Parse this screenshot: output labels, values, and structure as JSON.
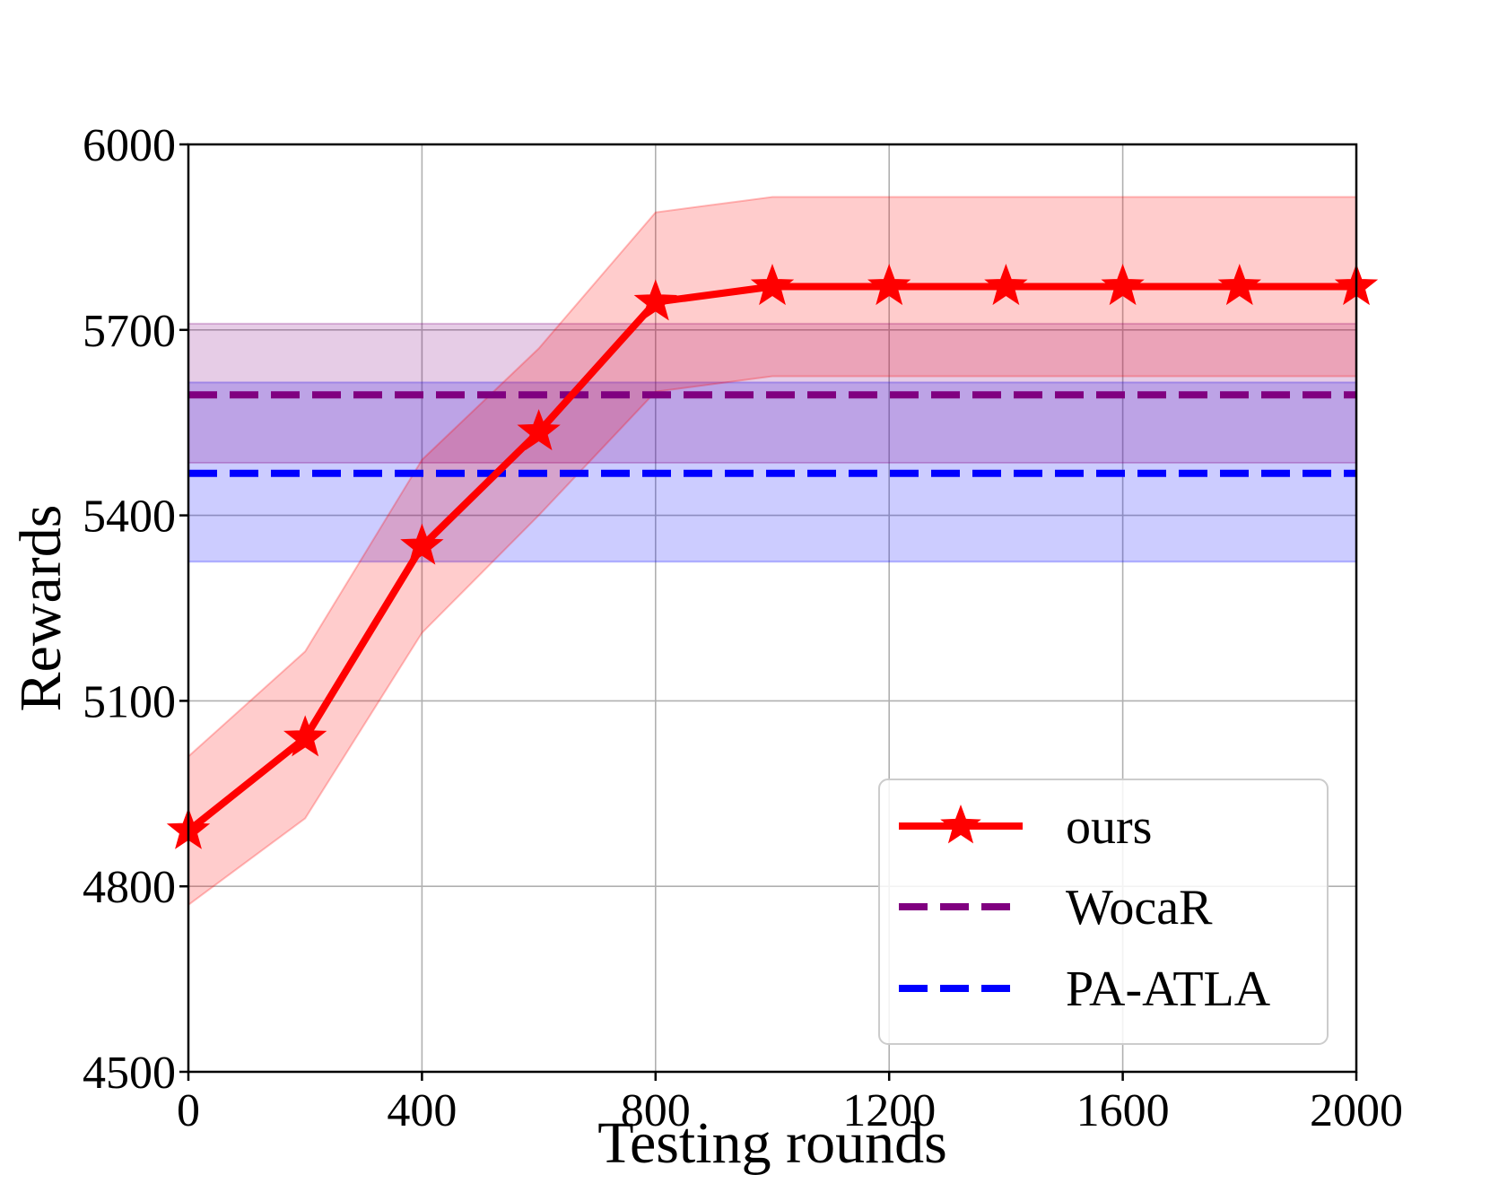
{
  "chart_data": {
    "type": "line",
    "title": "",
    "xlabel": "Testing rounds",
    "ylabel": "Rewards",
    "xlim": [
      0,
      2000
    ],
    "ylim": [
      4500,
      6000
    ],
    "xticks": [
      0,
      400,
      800,
      1200,
      1600,
      2000
    ],
    "yticks": [
      4500,
      4800,
      5100,
      5400,
      5700,
      6000
    ],
    "xtick_labels": [
      "0",
      "400",
      "800",
      "1200",
      "1600",
      "2000"
    ],
    "ytick_labels": [
      "4500",
      "4800",
      "5100",
      "5400",
      "5700",
      "6000"
    ],
    "grid": true,
    "legend_position": "lower-right",
    "series": [
      {
        "name": "ours",
        "style": "solid",
        "marker": "star",
        "color": "#ff0000",
        "x": [
          0,
          200,
          400,
          600,
          800,
          1000,
          1200,
          1400,
          1600,
          1800,
          2000
        ],
        "values": [
          4890,
          5040,
          5350,
          5535,
          5745,
          5770,
          5770,
          5770,
          5770,
          5770,
          5770
        ],
        "band_lower": [
          4770,
          4910,
          5210,
          5400,
          5600,
          5625,
          5625,
          5625,
          5625,
          5625,
          5625
        ],
        "band_upper": [
          5010,
          5180,
          5490,
          5670,
          5890,
          5915,
          5915,
          5915,
          5915,
          5915,
          5915
        ]
      },
      {
        "name": "WocaR",
        "style": "dashed",
        "color": "#800080",
        "x": [
          0,
          2000
        ],
        "values": [
          5595,
          5595
        ],
        "band_lower": [
          5485,
          5485
        ],
        "band_upper": [
          5710,
          5710
        ]
      },
      {
        "name": "PA-ATLA",
        "style": "dashed",
        "color": "#0000ff",
        "x": [
          0,
          2000
        ],
        "values": [
          5468,
          5468
        ],
        "band_lower": [
          5325,
          5325
        ],
        "band_upper": [
          5615,
          5615
        ]
      }
    ]
  }
}
